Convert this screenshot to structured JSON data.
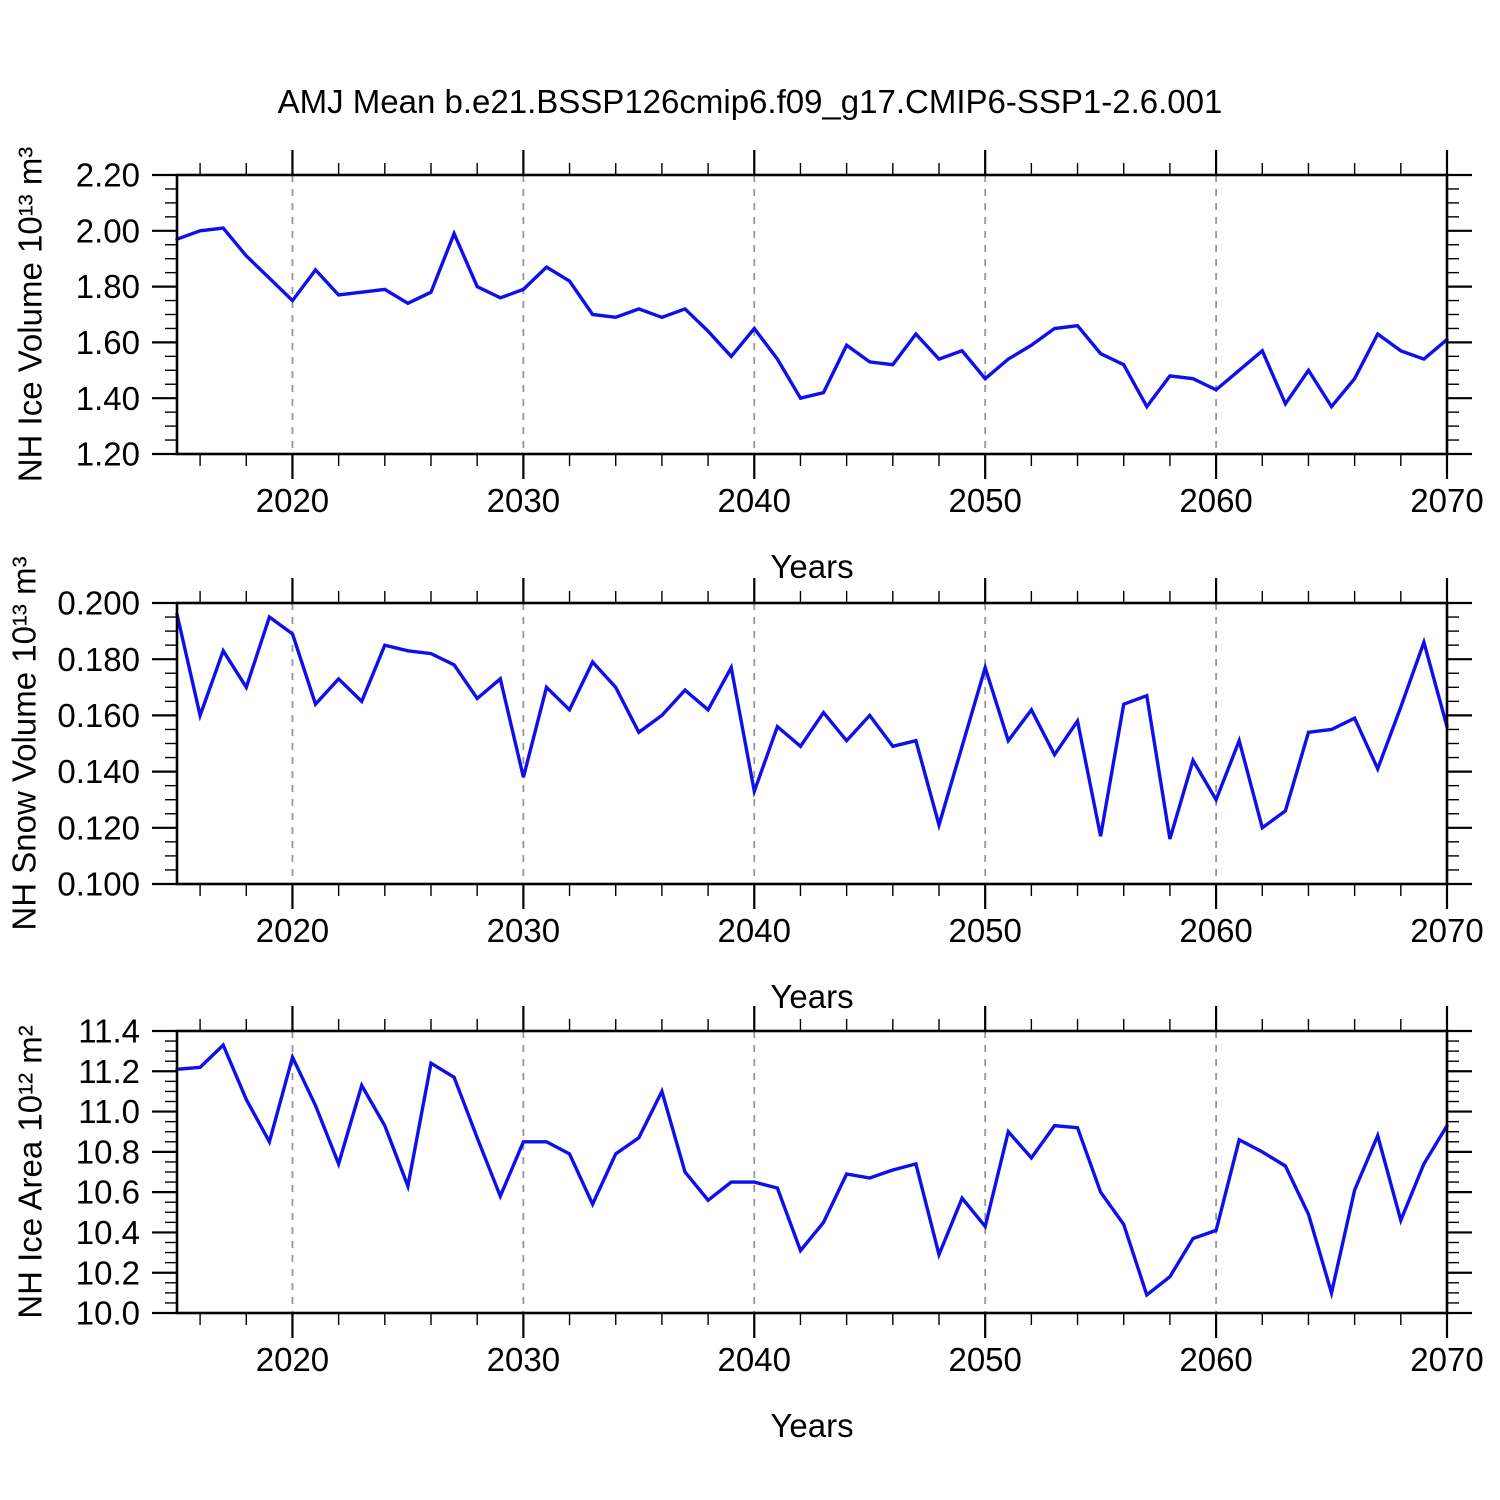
{
  "title": "AMJ Mean b.e21.BSSP126cmip6.f09_g17.CMIP6-SSP1-2.6.001",
  "colors": {
    "line": "#0f0feb",
    "grid": "#999999",
    "frame": "#000000",
    "background": "#ffffff"
  },
  "years": [
    2015,
    2016,
    2017,
    2018,
    2019,
    2020,
    2021,
    2022,
    2023,
    2024,
    2025,
    2026,
    2027,
    2028,
    2029,
    2030,
    2031,
    2032,
    2033,
    2034,
    2035,
    2036,
    2037,
    2038,
    2039,
    2040,
    2041,
    2042,
    2043,
    2044,
    2045,
    2046,
    2047,
    2048,
    2049,
    2050,
    2051,
    2052,
    2053,
    2054,
    2055,
    2056,
    2057,
    2058,
    2059,
    2060,
    2061,
    2062,
    2063,
    2064,
    2065,
    2066,
    2067,
    2068,
    2069,
    2070
  ],
  "chart_data": [
    {
      "type": "line",
      "name": "nh-ice-volume",
      "title": "",
      "ylabel": "NH Ice Volume 10¹³ m³",
      "xlabel": "Years",
      "ylim": [
        1.2,
        2.2
      ],
      "ytick_step": 0.2,
      "yminor_step": 0.05,
      "ytick_labels": [
        "1.20",
        "1.40",
        "1.60",
        "1.80",
        "2.00",
        "2.20"
      ],
      "xlim": [
        2015,
        2070
      ],
      "xticks": [
        2020,
        2030,
        2040,
        2050,
        2060,
        2070
      ],
      "xtick_labels": [
        "2020",
        "2030",
        "2040",
        "2050",
        "2060",
        "2070"
      ],
      "xminor_step": 2,
      "grid_vlines": [
        2020,
        2030,
        2040,
        2050,
        2060
      ],
      "legend": "none",
      "grid": "vertical-dashed-only",
      "values": [
        1.97,
        2.0,
        2.01,
        1.91,
        1.83,
        1.75,
        1.86,
        1.77,
        1.78,
        1.79,
        1.74,
        1.78,
        1.99,
        1.8,
        1.76,
        1.79,
        1.87,
        1.82,
        1.7,
        1.69,
        1.72,
        1.69,
        1.72,
        1.64,
        1.55,
        1.65,
        1.54,
        1.4,
        1.42,
        1.59,
        1.53,
        1.52,
        1.63,
        1.54,
        1.57,
        1.47,
        1.54,
        1.59,
        1.65,
        1.66,
        1.56,
        1.52,
        1.37,
        1.48,
        1.47,
        1.43,
        1.5,
        1.57,
        1.38,
        1.5,
        1.37,
        1.47,
        1.63,
        1.57,
        1.54,
        1.61
      ]
    },
    {
      "type": "line",
      "name": "nh-snow-volume",
      "title": "",
      "ylabel": "NH Snow Volume 10¹³ m³",
      "xlabel": "Years",
      "ylim": [
        0.1,
        0.2
      ],
      "ytick_step": 0.02,
      "yminor_step": 0.005,
      "ytick_labels": [
        "0.100",
        "0.120",
        "0.140",
        "0.160",
        "0.180",
        "0.200"
      ],
      "xlim": [
        2015,
        2070
      ],
      "xticks": [
        2020,
        2030,
        2040,
        2050,
        2060,
        2070
      ],
      "xtick_labels": [
        "2020",
        "2030",
        "2040",
        "2050",
        "2060",
        "2070"
      ],
      "xminor_step": 2,
      "grid_vlines": [
        2020,
        2030,
        2040,
        2050,
        2060
      ],
      "legend": "none",
      "grid": "vertical-dashed-only",
      "values": [
        0.196,
        0.16,
        0.183,
        0.17,
        0.195,
        0.189,
        0.164,
        0.173,
        0.165,
        0.185,
        0.183,
        0.182,
        0.178,
        0.166,
        0.173,
        0.138,
        0.17,
        0.162,
        0.179,
        0.17,
        0.154,
        0.16,
        0.169,
        0.162,
        0.177,
        0.133,
        0.156,
        0.149,
        0.161,
        0.151,
        0.16,
        0.149,
        0.151,
        0.121,
        0.149,
        0.177,
        0.151,
        0.162,
        0.146,
        0.158,
        0.117,
        0.164,
        0.167,
        0.116,
        0.144,
        0.13,
        0.151,
        0.12,
        0.126,
        0.154,
        0.155,
        0.159,
        0.141,
        0.163,
        0.186,
        0.156
      ]
    },
    {
      "type": "line",
      "name": "nh-ice-area",
      "title": "",
      "ylabel": "NH Ice Area 10¹² m²",
      "xlabel": "Years",
      "ylim": [
        10.0,
        11.4
      ],
      "ytick_step": 0.2,
      "yminor_step": 0.05,
      "ytick_labels": [
        "10.0",
        "10.2",
        "10.4",
        "10.6",
        "10.8",
        "11.0",
        "11.2",
        "11.4"
      ],
      "xlim": [
        2015,
        2070
      ],
      "xticks": [
        2020,
        2030,
        2040,
        2050,
        2060,
        2070
      ],
      "xtick_labels": [
        "2020",
        "2030",
        "2040",
        "2050",
        "2060",
        "2070"
      ],
      "xminor_step": 2,
      "grid_vlines": [
        2020,
        2030,
        2040,
        2050,
        2060
      ],
      "legend": "none",
      "grid": "vertical-dashed-only",
      "values": [
        11.21,
        11.22,
        11.33,
        11.06,
        10.85,
        11.27,
        11.03,
        10.74,
        11.13,
        10.93,
        10.63,
        11.24,
        11.17,
        10.87,
        10.58,
        10.85,
        10.85,
        10.79,
        10.54,
        10.79,
        10.87,
        11.1,
        10.7,
        10.56,
        10.65,
        10.65,
        10.62,
        10.31,
        10.45,
        10.69,
        10.67,
        10.71,
        10.74,
        10.29,
        10.57,
        10.43,
        10.9,
        10.77,
        10.93,
        10.92,
        10.6,
        10.44,
        10.09,
        10.18,
        10.37,
        10.41,
        10.86,
        10.8,
        10.73,
        10.49,
        10.1,
        10.61,
        10.88,
        10.46,
        10.74,
        10.93
      ]
    }
  ]
}
